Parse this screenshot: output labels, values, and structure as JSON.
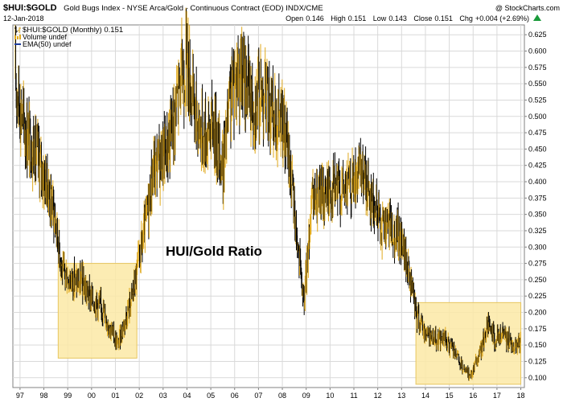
{
  "header": {
    "symbol": "$HUI:$GOLD",
    "description": "Gold Bugs Index - NYSE Arca/Gold - Continuous Contract (EOD) INDX/CME",
    "watermark": "@ StockCharts.com",
    "date": "12-Jan-2018",
    "ohlc": {
      "open_label": "Open",
      "open": "0.146",
      "high_label": "High",
      "high": "0.151",
      "low_label": "Low",
      "low": "0.143",
      "close_label": "Close",
      "close": "0.151",
      "chg_label": "Chg",
      "chg": "+0.004 (+2.69%)"
    }
  },
  "legend": {
    "main": "$HUI:$GOLD (Monthly) 0.151",
    "volume": "Volume undef",
    "ema": "EMA(50) undef"
  },
  "annotation": "HUI/Gold Ratio",
  "colors": {
    "up_bar": "#e0a91c",
    "down_bar": "#000000",
    "box_fill": "#fbe9a6",
    "box_stroke": "#e7c660",
    "grid": "#d9d9d9",
    "volume_icon": "#e0a91c",
    "ema_icon": "#1f3f9f"
  },
  "chart_data": {
    "type": "line",
    "style": "hlc-bars",
    "x_ticks": [
      "97",
      "98",
      "99",
      "00",
      "01",
      "02",
      "03",
      "04",
      "05",
      "06",
      "07",
      "08",
      "09",
      "10",
      "11",
      "12",
      "13",
      "14",
      "15",
      "16",
      "17",
      "18"
    ],
    "y_ticks": [
      "0.100",
      "0.125",
      "0.150",
      "0.175",
      "0.200",
      "0.225",
      "0.250",
      "0.275",
      "0.300",
      "0.325",
      "0.350",
      "0.375",
      "0.400",
      "0.425",
      "0.450",
      "0.475",
      "0.500",
      "0.525",
      "0.550",
      "0.575",
      "0.600",
      "0.625"
    ],
    "ylim": [
      0.085,
      0.64
    ],
    "xlim": [
      1996.7,
      2018.15
    ],
    "grid": true,
    "highlight_boxes": [
      {
        "x": [
          1998.6,
          2001.9
        ],
        "y": [
          0.13,
          0.275
        ]
      },
      {
        "x": [
          2013.6,
          2018.0
        ],
        "y": [
          0.09,
          0.215
        ]
      }
    ],
    "anchors": [
      [
        1996.8,
        0.56
      ],
      [
        1997.2,
        0.48
      ],
      [
        1997.6,
        0.45
      ],
      [
        1998.0,
        0.41
      ],
      [
        1998.4,
        0.36
      ],
      [
        1998.8,
        0.26
      ],
      [
        1999.2,
        0.25
      ],
      [
        1999.6,
        0.245
      ],
      [
        2000.0,
        0.22
      ],
      [
        2000.4,
        0.21
      ],
      [
        2000.8,
        0.175
      ],
      [
        2001.1,
        0.15
      ],
      [
        2001.5,
        0.2
      ],
      [
        2001.8,
        0.24
      ],
      [
        2002.2,
        0.32
      ],
      [
        2002.6,
        0.42
      ],
      [
        2003.0,
        0.44
      ],
      [
        2003.3,
        0.47
      ],
      [
        2003.7,
        0.55
      ],
      [
        2004.0,
        0.59
      ],
      [
        2004.3,
        0.51
      ],
      [
        2004.7,
        0.47
      ],
      [
        2005.1,
        0.49
      ],
      [
        2005.5,
        0.42
      ],
      [
        2005.8,
        0.52
      ],
      [
        2006.1,
        0.57
      ],
      [
        2006.5,
        0.55
      ],
      [
        2006.8,
        0.52
      ],
      [
        2007.2,
        0.54
      ],
      [
        2007.6,
        0.5
      ],
      [
        2008.0,
        0.49
      ],
      [
        2008.3,
        0.43
      ],
      [
        2008.6,
        0.32
      ],
      [
        2008.9,
        0.21
      ],
      [
        2009.2,
        0.36
      ],
      [
        2009.6,
        0.38
      ],
      [
        2010.0,
        0.39
      ],
      [
        2010.5,
        0.39
      ],
      [
        2011.0,
        0.4
      ],
      [
        2011.4,
        0.41
      ],
      [
        2011.8,
        0.37
      ],
      [
        2012.2,
        0.33
      ],
      [
        2012.6,
        0.33
      ],
      [
        2013.0,
        0.31
      ],
      [
        2013.3,
        0.26
      ],
      [
        2013.6,
        0.2
      ],
      [
        2014.0,
        0.17
      ],
      [
        2014.4,
        0.16
      ],
      [
        2014.8,
        0.16
      ],
      [
        2015.2,
        0.14
      ],
      [
        2015.6,
        0.11
      ],
      [
        2015.9,
        0.105
      ],
      [
        2016.3,
        0.14
      ],
      [
        2016.6,
        0.18
      ],
      [
        2016.9,
        0.16
      ],
      [
        2017.3,
        0.165
      ],
      [
        2017.7,
        0.15
      ],
      [
        2018.0,
        0.151
      ]
    ]
  }
}
